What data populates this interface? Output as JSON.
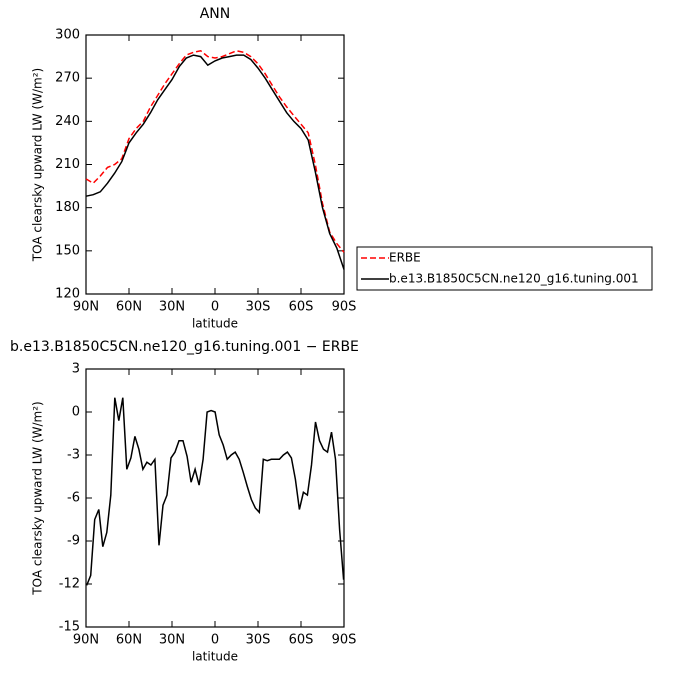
{
  "chart_data": [
    {
      "type": "line",
      "title": "ANN",
      "xlabel": "latitude",
      "ylabel": "TOA clearsky upward LW (W/m²)",
      "x": [
        90,
        85,
        80,
        75,
        70,
        65,
        60,
        55,
        50,
        45,
        40,
        35,
        30,
        25,
        20,
        15,
        10,
        5,
        0,
        -5,
        -10,
        -15,
        -20,
        -25,
        -30,
        -35,
        -40,
        -45,
        -50,
        -55,
        -60,
        -65,
        -70,
        -75,
        -80,
        -85,
        -90
      ],
      "series": [
        {
          "name": "ERBE",
          "color": "#ff0000",
          "linestyle": "dashed",
          "values": [
            200,
            197,
            202,
            208,
            210,
            214,
            228,
            235,
            240,
            250,
            258,
            266,
            273,
            280,
            286,
            288,
            289,
            285,
            284,
            285,
            287,
            289,
            288,
            285,
            280,
            273,
            265,
            257,
            250,
            244,
            238,
            232,
            210,
            183,
            163,
            155,
            149
          ]
        },
        {
          "name": "b.e13.B1850C5CN.ne120_g16.tuning.001",
          "color": "#000000",
          "linestyle": "solid",
          "values": [
            188,
            189,
            191,
            197,
            204,
            212,
            225,
            232,
            238,
            246,
            255,
            262,
            269,
            278,
            284,
            286,
            285,
            279,
            282,
            284,
            285,
            286,
            286,
            283,
            277,
            270,
            262,
            254,
            246,
            240,
            235,
            227,
            205,
            180,
            162,
            152,
            137
          ]
        }
      ],
      "xlim": [
        90,
        -90
      ],
      "xticks": [
        {
          "value": 90,
          "label": "90N"
        },
        {
          "value": 60,
          "label": "60N"
        },
        {
          "value": 30,
          "label": "30N"
        },
        0,
        {
          "value": -30,
          "label": "30S"
        },
        {
          "value": -60,
          "label": "60S"
        },
        {
          "value": -90,
          "label": "90S"
        }
      ],
      "ylim": [
        120,
        300
      ],
      "yticks": [
        120,
        150,
        180,
        210,
        240,
        270,
        300
      ],
      "legend": "right"
    },
    {
      "type": "line",
      "title": "b.e13.B1850C5CN.ne120_g16.tuning.001 − ERBE",
      "xlabel": "latitude",
      "ylabel": "TOA clearsky upward LW (W/m²)",
      "x": [
        89.5,
        86.7,
        83.9,
        81.1,
        78.3,
        75.5,
        72.7,
        69.9,
        67.1,
        64.3,
        61.5,
        58.7,
        55.9,
        53.1,
        50.3,
        47.5,
        44.7,
        41.9,
        39.1,
        36.3,
        33.5,
        30.7,
        27.9,
        25.1,
        22.3,
        19.5,
        16.7,
        13.9,
        11.1,
        8.3,
        5.5,
        2.7,
        -0.1,
        -2.9,
        -5.7,
        -8.5,
        -11.3,
        -14.1,
        -16.9,
        -19.7,
        -22.5,
        -25.3,
        -28.1,
        -30.9,
        -33.7,
        -36.5,
        -39.3,
        -42.1,
        -44.9,
        -47.7,
        -50.5,
        -53.3,
        -56.1,
        -58.9,
        -61.7,
        -64.5,
        -67.3,
        -70.1,
        -72.9,
        -75.7,
        -78.5,
        -81.3,
        -84.1,
        -86.9,
        -89.7
      ],
      "values": [
        -12.1,
        -11.4,
        -7.5,
        -6.8,
        -9.4,
        -8.4,
        -5.8,
        1.0,
        -0.6,
        1.0,
        -4.0,
        -3.2,
        -1.7,
        -2.6,
        -4.0,
        -3.5,
        -3.7,
        -3.3,
        -9.3,
        -6.5,
        -5.8,
        -3.2,
        -2.8,
        -2.0,
        -2.0,
        -3.1,
        -4.9,
        -4.0,
        -5.1,
        -3.3,
        0.0,
        0.1,
        0.0,
        -1.6,
        -2.3,
        -3.3,
        -3.0,
        -2.8,
        -3.3,
        -4.2,
        -5.2,
        -6.1,
        -6.7,
        -7.0,
        -3.3,
        -3.4,
        -3.3,
        -3.3,
        -3.3,
        -3.0,
        -2.8,
        -3.2,
        -4.7,
        -6.8,
        -5.6,
        -5.8,
        -3.7,
        -0.7,
        -2.0,
        -2.6,
        -2.8,
        -1.4,
        -3.3,
        -8.2,
        -11.7
      ],
      "color": "#000000",
      "xlim": [
        90,
        -90
      ],
      "xticks": [
        {
          "value": 90,
          "label": "90N"
        },
        {
          "value": 60,
          "label": "60N"
        },
        {
          "value": 30,
          "label": "30N"
        },
        0,
        {
          "value": -30,
          "label": "30S"
        },
        {
          "value": -60,
          "label": "60S"
        },
        {
          "value": -90,
          "label": "90S"
        }
      ],
      "ylim": [
        -15,
        3
      ],
      "yticks": [
        -15,
        -12,
        -9,
        -6,
        -3,
        0,
        3
      ]
    }
  ]
}
